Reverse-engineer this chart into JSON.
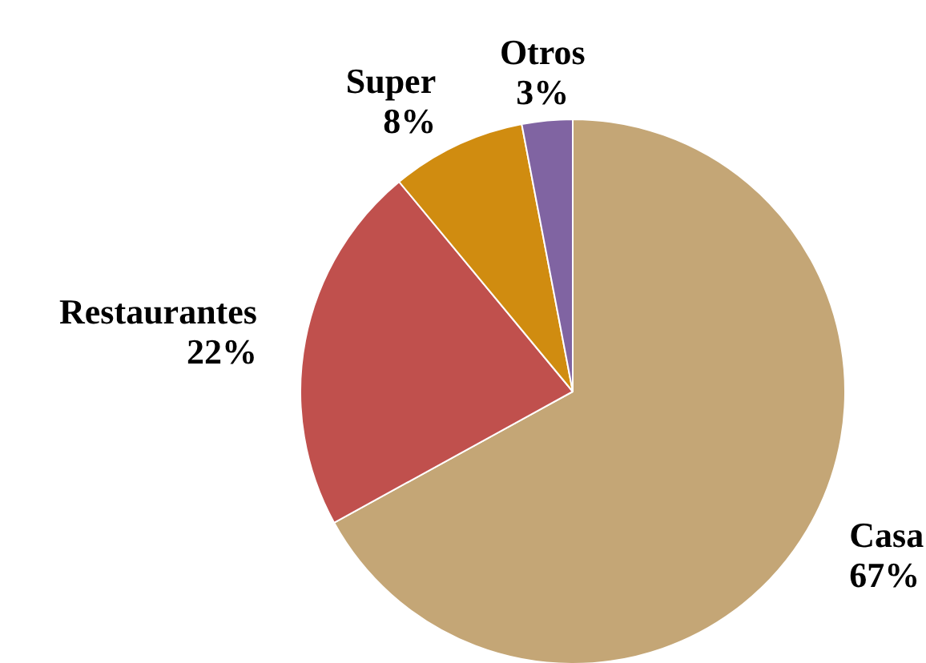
{
  "chart_data": {
    "type": "pie",
    "categories": [
      "Casa",
      "Restaurantes",
      "Super",
      "Otros"
    ],
    "values": [
      67,
      22,
      8,
      3
    ],
    "colors": [
      "#c4a676",
      "#c0504d",
      "#d08c10",
      "#8064a2"
    ],
    "value_labels": [
      "67%",
      "22%",
      "8%",
      "3%"
    ]
  }
}
